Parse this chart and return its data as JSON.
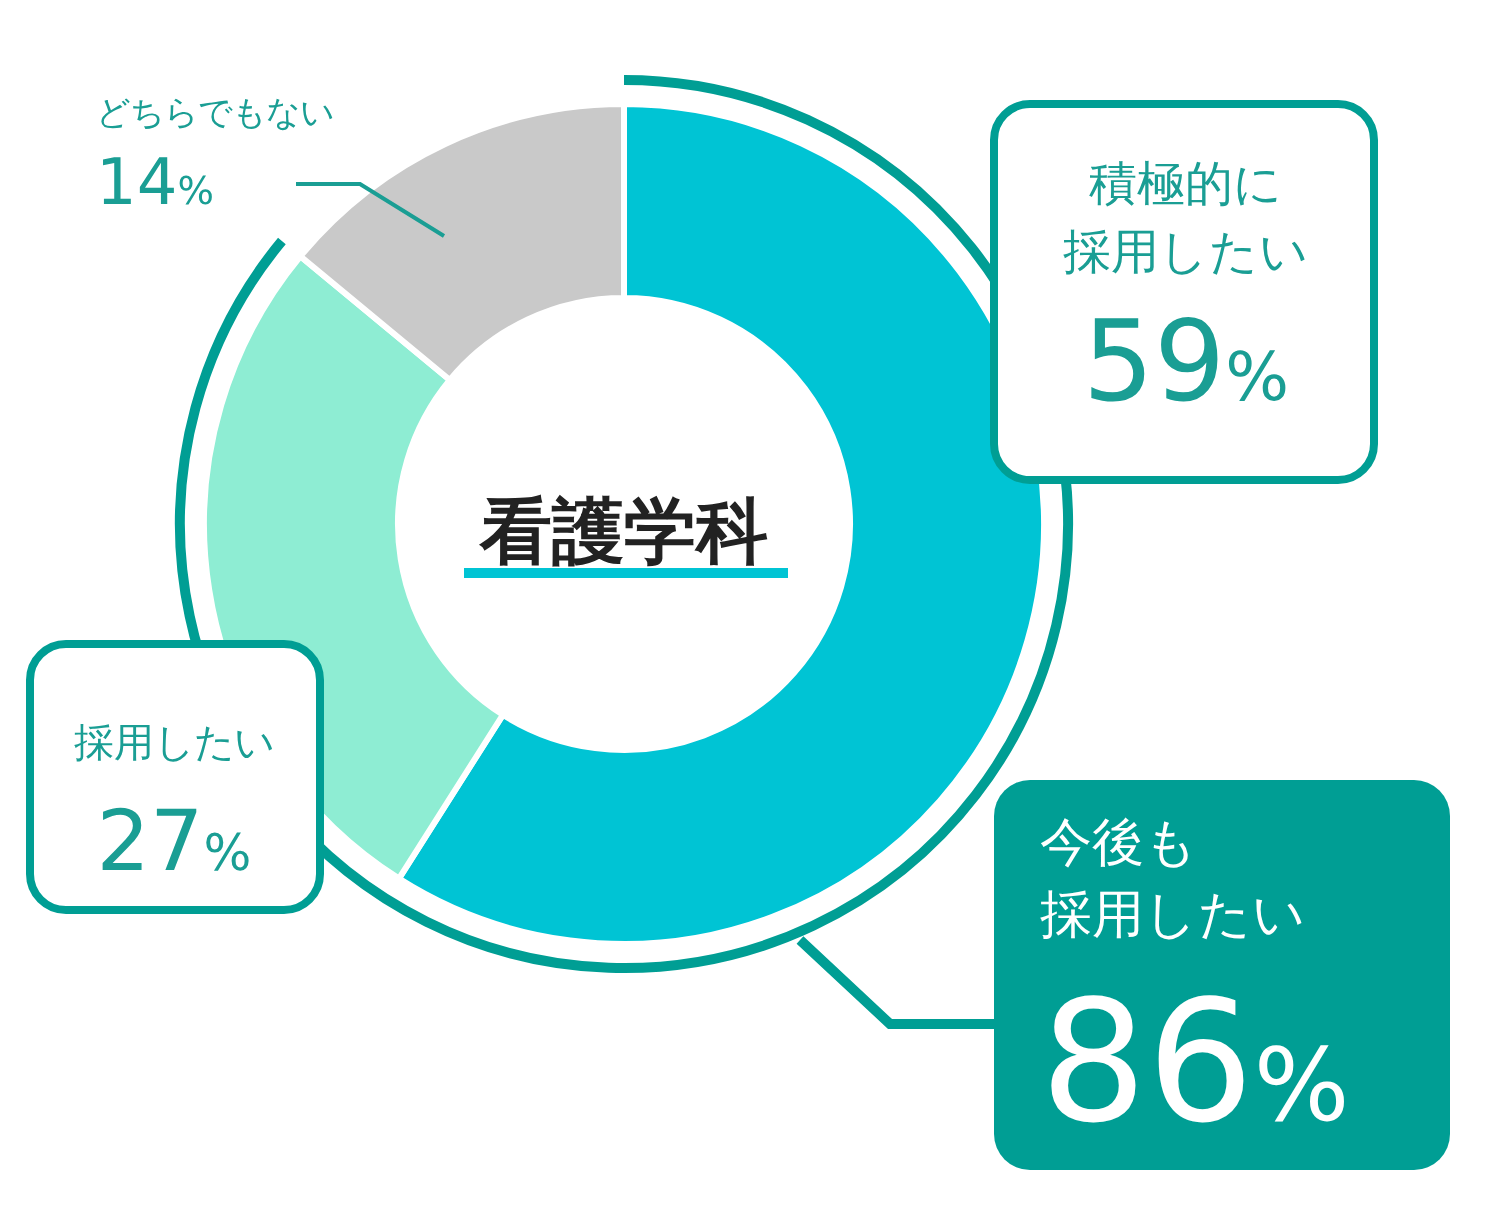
{
  "chart_data": {
    "type": "donut",
    "title": "看護学科",
    "categories": [
      "積極的に採用したい",
      "採用したい",
      "どちらでもない"
    ],
    "values": [
      59,
      27,
      14
    ],
    "colors": [
      "#00c4d4",
      "#8eedd3",
      "#c9c9c9"
    ],
    "value_labels": [
      "59%",
      "27%",
      "14%"
    ],
    "annotations": [
      "今後も採用したい86%"
    ]
  }
}
